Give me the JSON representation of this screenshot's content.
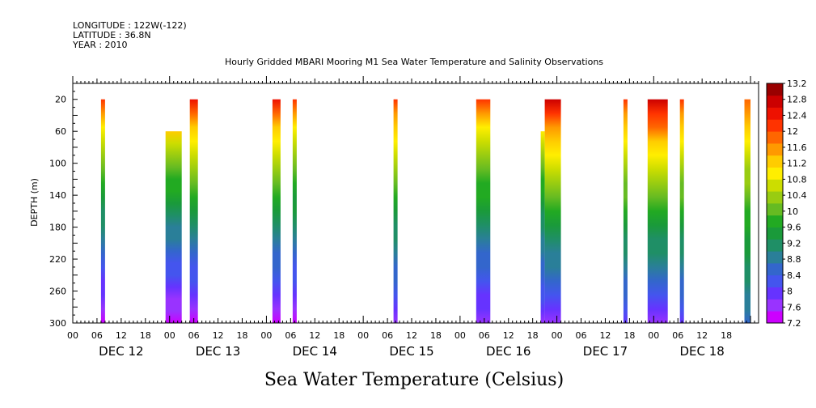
{
  "header": {
    "longitude": "LONGITUDE : 122W(-122)",
    "latitude": "LATITUDE : 36.8N",
    "year": "YEAR : 2010"
  },
  "chart_data": {
    "type": "heatmap",
    "title": "Hourly Gridded MBARI Mooring M1 Sea Water Temperature and Salinity Observations",
    "bottom_title": "Sea Water Temperature (Celsius)",
    "ylabel": "DEPTH (m)",
    "ylim": [
      300,
      0
    ],
    "yticks": [
      20,
      60,
      100,
      140,
      180,
      220,
      260,
      300
    ],
    "x_range_hours": [
      0,
      170
    ],
    "x_hour_ticks": [
      "00",
      "06",
      "12",
      "18",
      "00",
      "06",
      "12",
      "18",
      "00",
      "06",
      "12",
      "18",
      "00",
      "06",
      "12",
      "18",
      "00",
      "06",
      "12",
      "18",
      "00",
      "06",
      "12",
      "18",
      "00",
      "06",
      "12",
      "18"
    ],
    "day_labels": [
      "DEC 12",
      "DEC 13",
      "DEC 14",
      "DEC 15",
      "DEC 16",
      "DEC 17",
      "DEC 18"
    ],
    "colorbar": {
      "levels": [
        7.2,
        7.6,
        8,
        8.4,
        8.8,
        9.2,
        9.6,
        10,
        10.4,
        10.8,
        11.2,
        11.6,
        12,
        12.4,
        12.8,
        13.2
      ],
      "colors": [
        "#cc00ff",
        "#9933ff",
        "#6633ff",
        "#4455ee",
        "#3366cc",
        "#2a7f99",
        "#1f8f66",
        "#1a9a3a",
        "#22aa22",
        "#66bb22",
        "#99cc11",
        "#ccdd00",
        "#ffee00",
        "#ffcc00",
        "#ff9900",
        "#ff6600",
        "#ff3300",
        "#ee1100",
        "#cc0000",
        "#990000"
      ]
    },
    "columns": [
      {
        "start_h": 7.0,
        "end_h": 8.0,
        "top_depth": 20,
        "temp_top": 12.0,
        "temp_bottom": 7.4
      },
      {
        "start_h": 23.0,
        "end_h": 27.0,
        "top_depth": 60,
        "temp_top": 11.2,
        "temp_bottom": 7.4
      },
      {
        "start_h": 29.0,
        "end_h": 31.0,
        "top_depth": 20,
        "temp_top": 12.4,
        "temp_bottom": 7.4
      },
      {
        "start_h": 49.5,
        "end_h": 51.5,
        "top_depth": 20,
        "temp_top": 12.3,
        "temp_bottom": 7.5
      },
      {
        "start_h": 54.5,
        "end_h": 55.5,
        "top_depth": 20,
        "temp_top": 12.0,
        "temp_bottom": 7.5
      },
      {
        "start_h": 79.5,
        "end_h": 80.5,
        "top_depth": 20,
        "temp_top": 12.0,
        "temp_bottom": 7.8
      },
      {
        "start_h": 100.0,
        "end_h": 103.5,
        "top_depth": 20,
        "temp_top": 12.0,
        "temp_bottom": 7.6
      },
      {
        "start_h": 116.0,
        "end_h": 117.0,
        "top_depth": 60,
        "temp_top": 11.0,
        "temp_bottom": 7.8
      },
      {
        "start_h": 117.0,
        "end_h": 121.0,
        "top_depth": 20,
        "temp_top": 12.6,
        "temp_bottom": 7.8
      },
      {
        "start_h": 136.5,
        "end_h": 137.5,
        "top_depth": 20,
        "temp_top": 12.2,
        "temp_bottom": 8.0
      },
      {
        "start_h": 142.5,
        "end_h": 147.5,
        "top_depth": 20,
        "temp_top": 12.8,
        "temp_bottom": 7.8
      },
      {
        "start_h": 150.5,
        "end_h": 151.5,
        "top_depth": 20,
        "temp_top": 12.2,
        "temp_bottom": 8.0
      },
      {
        "start_h": 166.5,
        "end_h": 168.0,
        "top_depth": 20,
        "temp_top": 11.8,
        "temp_bottom": 8.6
      }
    ]
  }
}
